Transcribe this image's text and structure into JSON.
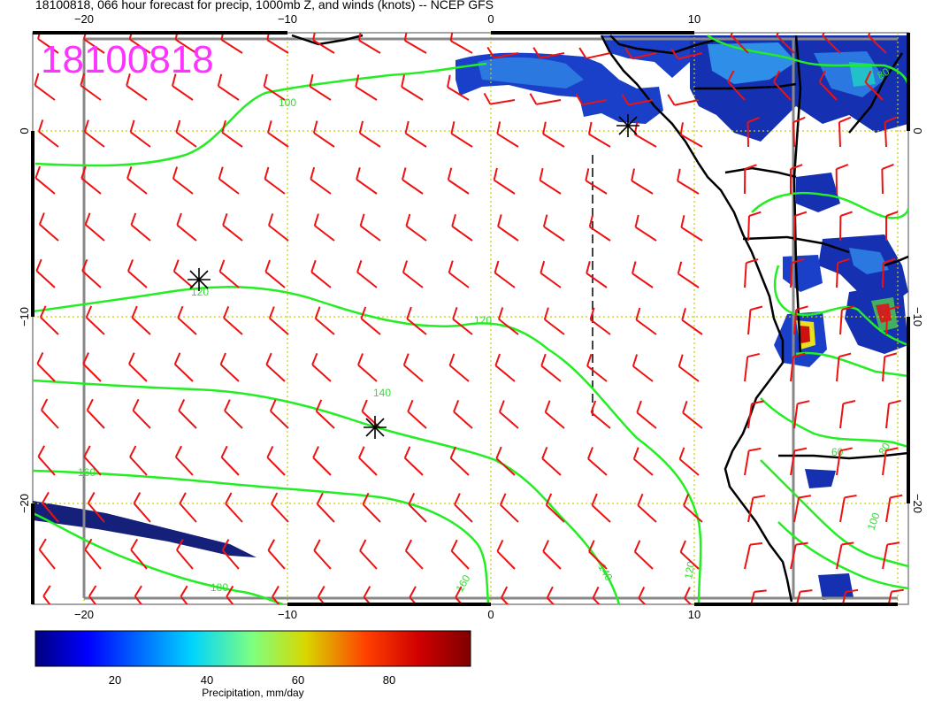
{
  "title": "18100818, 066 hour forecast for precip, 1000mb Z, and winds (knots) -- NCEP GFS",
  "stamp": "18100818",
  "colors": {
    "stamp": "#ff33ff",
    "contour": "#22ee22",
    "barb": "#ee1111",
    "coast": "#000000",
    "grid": "#cccc00",
    "frame": "#888888"
  },
  "axes": {
    "lon_ticks": [
      "−20",
      "−10",
      "0",
      "10"
    ],
    "lat_ticks": [
      "0",
      "−10",
      "−20"
    ],
    "lon_range": [
      -22.5,
      20.5
    ],
    "lat_range": [
      -25,
      5
    ]
  },
  "contour_labels": [
    "100",
    "120",
    "120",
    "140",
    "140",
    "160",
    "160",
    "180",
    "120",
    "60",
    "80",
    "100",
    "80"
  ],
  "colorbar": {
    "tick_labels": [
      "20",
      "40",
      "60",
      "80"
    ],
    "range": [
      0,
      100
    ],
    "caption": "Precipitation, mm/day"
  }
}
